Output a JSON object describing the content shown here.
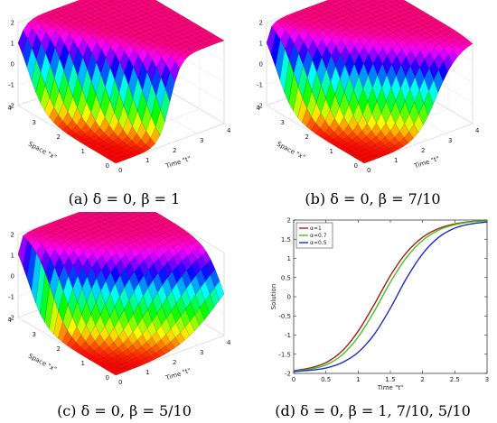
{
  "chart_data": [
    {
      "type": "surface",
      "panel": "a",
      "caption": "(a) δ = 0, β = 1",
      "xlabel": "Space \"x\"",
      "ylabel": "Time \"t\"",
      "zlabel": "Solution",
      "x_ticks": [
        "0",
        "1",
        "2",
        "3",
        "4"
      ],
      "t_ticks": [
        "0",
        "1",
        "2",
        "3",
        "4"
      ],
      "z_ticks": [
        "-2",
        "-1",
        "0",
        "1",
        "2"
      ],
      "xlim": [
        0,
        4
      ],
      "tlim": [
        0,
        4
      ],
      "zlim": [
        -2,
        2
      ],
      "beta": 1,
      "colormap": "hsv"
    },
    {
      "type": "surface",
      "panel": "b",
      "caption": "(b) δ = 0, β = 7/10",
      "xlabel": "Space \"x\"",
      "ylabel": "Time \"t\"",
      "zlabel": "Solution",
      "x_ticks": [
        "0",
        "1",
        "2",
        "3",
        "4"
      ],
      "t_ticks": [
        "0",
        "1",
        "2",
        "3",
        "4"
      ],
      "z_ticks": [
        "-2",
        "-1",
        "0",
        "1",
        "2"
      ],
      "xlim": [
        0,
        4
      ],
      "tlim": [
        0,
        4
      ],
      "zlim": [
        -2,
        2
      ],
      "beta": 0.7,
      "colormap": "hsv"
    },
    {
      "type": "surface",
      "panel": "c",
      "caption": "(c) δ = 0, β = 5/10",
      "xlabel": "Space \"x\"",
      "ylabel": "Time \"t\"",
      "zlabel": "Solution",
      "x_ticks": [
        "0",
        "1",
        "2",
        "3",
        "4"
      ],
      "t_ticks": [
        "0",
        "1",
        "2",
        "3",
        "4"
      ],
      "z_ticks": [
        "-2",
        "-1",
        "0",
        "1",
        "2"
      ],
      "xlim": [
        0,
        4
      ],
      "tlim": [
        0,
        4
      ],
      "zlim": [
        -2,
        2
      ],
      "beta": 0.5,
      "colormap": "hsv"
    },
    {
      "type": "line",
      "panel": "d",
      "caption": "(d) δ = 0, β = 1, 7/10, 5/10",
      "xlabel": "Time \"t\"",
      "ylabel": "Solution",
      "xlim": [
        0,
        3
      ],
      "ylim": [
        -2,
        2
      ],
      "x_ticks": [
        "0",
        "0.5",
        "1",
        "1.5",
        "2",
        "2.5",
        "3"
      ],
      "y_ticks": [
        "-2",
        "-1.5",
        "-1",
        "-0.5",
        "0",
        "0.5",
        "1",
        "1.5",
        "2"
      ],
      "legend_position": "top-left",
      "x": [
        0,
        0.25,
        0.5,
        0.75,
        1.0,
        1.25,
        1.5,
        1.75,
        2.0,
        2.25,
        2.5,
        2.75,
        3.0
      ],
      "series": [
        {
          "name": "α=1",
          "color": "#a0201c",
          "values": [
            -1.93,
            -1.86,
            -1.72,
            -1.42,
            -0.9,
            -0.2,
            0.55,
            1.15,
            1.55,
            1.78,
            1.9,
            1.96,
            1.98
          ]
        },
        {
          "name": "α=0.7",
          "color": "#46c21d",
          "values": [
            -1.94,
            -1.89,
            -1.78,
            -1.52,
            -1.05,
            -0.38,
            0.38,
            1.02,
            1.47,
            1.74,
            1.88,
            1.95,
            1.98
          ]
        },
        {
          "name": "α=0.5",
          "color": "#1c2ccf",
          "values": [
            -1.95,
            -1.92,
            -1.86,
            -1.72,
            -1.45,
            -0.98,
            -0.3,
            0.48,
            1.12,
            1.55,
            1.79,
            1.9,
            1.95
          ]
        }
      ]
    }
  ]
}
